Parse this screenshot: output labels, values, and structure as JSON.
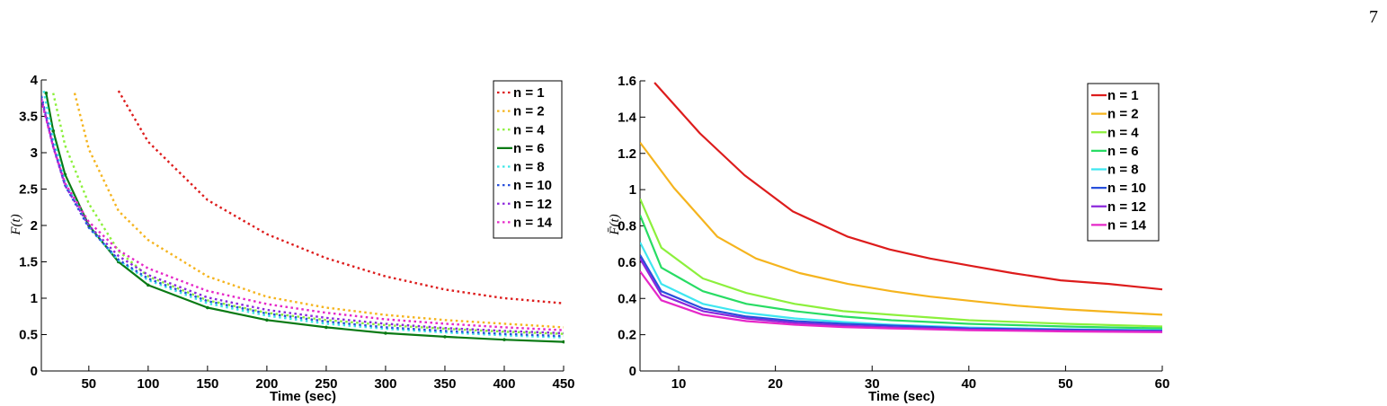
{
  "page_number": "7",
  "chart_data": [
    {
      "type": "line",
      "title": "",
      "xlabel": "Time (sec)",
      "ylabel": "F(t)",
      "xlim": [
        10,
        450
      ],
      "ylim": [
        0,
        4
      ],
      "xticks": [
        "50",
        "100",
        "150",
        "200",
        "250",
        "300",
        "350",
        "400",
        "450"
      ],
      "xtick_values": [
        50,
        100,
        150,
        200,
        250,
        300,
        350,
        400,
        450
      ],
      "yticks": [
        "0",
        "0.5",
        "1",
        "1.5",
        "2",
        "2.5",
        "3",
        "3.5",
        "4"
      ],
      "ytick_values": [
        0,
        0.5,
        1,
        1.5,
        2,
        2.5,
        3,
        3.5,
        4
      ],
      "grid": false,
      "legend_position": "top-right",
      "series": [
        {
          "name": "n = 1",
          "color": "#dd1c1c",
          "style": "dotted",
          "x": [
            75,
            100,
            150,
            200,
            250,
            300,
            350,
            400,
            450
          ],
          "values": [
            3.85,
            3.15,
            2.35,
            1.88,
            1.55,
            1.3,
            1.12,
            1.0,
            0.93
          ]
        },
        {
          "name": "n = 2",
          "color": "#f5b41e",
          "style": "dotted",
          "x": [
            38,
            50,
            75,
            100,
            150,
            200,
            250,
            300,
            350,
            400,
            450
          ],
          "values": [
            3.82,
            3.05,
            2.2,
            1.8,
            1.3,
            1.02,
            0.87,
            0.77,
            0.7,
            0.65,
            0.6
          ]
        },
        {
          "name": "n = 4",
          "color": "#8cf03c",
          "style": "dotted",
          "x": [
            20,
            30,
            50,
            75,
            100,
            150,
            200,
            250,
            300,
            350,
            400,
            450
          ],
          "values": [
            3.82,
            3.1,
            2.3,
            1.65,
            1.3,
            0.97,
            0.8,
            0.7,
            0.63,
            0.58,
            0.54,
            0.51
          ]
        },
        {
          "name": "n = 6",
          "color": "#0a7a14",
          "style": "solid",
          "x": [
            14,
            20,
            30,
            50,
            75,
            100,
            150,
            200,
            250,
            300,
            350,
            400,
            450
          ],
          "values": [
            3.82,
            3.3,
            2.7,
            2.0,
            1.5,
            1.18,
            0.87,
            0.7,
            0.6,
            0.52,
            0.47,
            0.43,
            0.4
          ]
        },
        {
          "name": "n = 8",
          "color": "#3ee6e6",
          "style": "dotted",
          "x": [
            12,
            20,
            30,
            50,
            75,
            100,
            150,
            200,
            250,
            300,
            350,
            400,
            450
          ],
          "values": [
            3.85,
            3.2,
            2.6,
            1.98,
            1.52,
            1.25,
            0.93,
            0.76,
            0.65,
            0.58,
            0.53,
            0.49,
            0.46
          ]
        },
        {
          "name": "n = 10",
          "color": "#2850dc",
          "style": "dotted",
          "x": [
            10,
            20,
            30,
            50,
            75,
            100,
            150,
            200,
            250,
            300,
            350,
            400,
            450
          ],
          "values": [
            3.78,
            3.1,
            2.55,
            1.97,
            1.53,
            1.27,
            0.96,
            0.79,
            0.68,
            0.6,
            0.55,
            0.51,
            0.48
          ]
        },
        {
          "name": "n = 12",
          "color": "#8c28dc",
          "style": "dotted",
          "x": [
            10,
            20,
            30,
            50,
            75,
            100,
            150,
            200,
            250,
            300,
            350,
            400,
            450
          ],
          "values": [
            3.75,
            3.08,
            2.55,
            2.0,
            1.58,
            1.32,
            1.01,
            0.84,
            0.73,
            0.65,
            0.59,
            0.55,
            0.52
          ]
        },
        {
          "name": "n = 14",
          "color": "#e628c8",
          "style": "dotted",
          "x": [
            10,
            20,
            30,
            50,
            75,
            100,
            150,
            200,
            250,
            300,
            350,
            400,
            450
          ],
          "values": [
            3.72,
            3.08,
            2.58,
            2.05,
            1.66,
            1.41,
            1.1,
            0.92,
            0.8,
            0.71,
            0.65,
            0.6,
            0.56
          ]
        }
      ]
    },
    {
      "type": "line",
      "title": "",
      "xlabel": "Time (sec)",
      "ylabel": "F̄(t)",
      "xlim": [
        6,
        60
      ],
      "ylim": [
        0,
        1.6
      ],
      "xticks": [
        "10",
        "20",
        "30",
        "40",
        "50",
        "60"
      ],
      "xtick_values": [
        10,
        20,
        30,
        40,
        50,
        60
      ],
      "yticks": [
        "0",
        "0.2",
        "0.4",
        "0.6",
        "0.8",
        "1",
        "1.2",
        "1.4",
        "1.6"
      ],
      "ytick_values": [
        0,
        0.2,
        0.4,
        0.6,
        0.8,
        1,
        1.2,
        1.4,
        1.6
      ],
      "grid": false,
      "legend_position": "top-right",
      "series": [
        {
          "name": "n = 1",
          "color": "#dd1c1c",
          "style": "solid",
          "x": [
            7.5,
            12.2,
            16.8,
            21.8,
            27.5,
            31.8,
            36,
            40.2,
            44.5,
            49.5,
            54.5,
            60
          ],
          "values": [
            1.59,
            1.31,
            1.08,
            0.88,
            0.74,
            0.67,
            0.62,
            0.58,
            0.54,
            0.5,
            0.48,
            0.45
          ]
        },
        {
          "name": "n = 2",
          "color": "#f5b41e",
          "style": "solid",
          "x": [
            6,
            9.5,
            14,
            18,
            22.5,
            27.5,
            32,
            36,
            40.5,
            45,
            50,
            55,
            60
          ],
          "values": [
            1.26,
            1.01,
            0.74,
            0.62,
            0.54,
            0.48,
            0.44,
            0.41,
            0.385,
            0.36,
            0.34,
            0.325,
            0.31
          ]
        },
        {
          "name": "n = 4",
          "color": "#8cf03c",
          "style": "solid",
          "x": [
            6,
            8.2,
            12.5,
            17,
            22,
            27,
            32,
            40,
            50,
            60
          ],
          "values": [
            0.95,
            0.68,
            0.51,
            0.43,
            0.37,
            0.33,
            0.31,
            0.28,
            0.26,
            0.245
          ]
        },
        {
          "name": "n = 6",
          "color": "#28dc64",
          "style": "solid",
          "x": [
            6,
            8.2,
            12.5,
            17,
            22,
            27,
            32,
            40,
            50,
            60
          ],
          "values": [
            0.86,
            0.57,
            0.44,
            0.37,
            0.33,
            0.3,
            0.28,
            0.26,
            0.245,
            0.235
          ]
        },
        {
          "name": "n = 8",
          "color": "#3ee6f0",
          "style": "solid",
          "x": [
            6,
            8.2,
            12.5,
            17,
            22,
            27,
            32,
            40,
            50,
            60
          ],
          "values": [
            0.71,
            0.48,
            0.37,
            0.32,
            0.29,
            0.27,
            0.255,
            0.24,
            0.23,
            0.225
          ]
        },
        {
          "name": "n = 10",
          "color": "#2850dc",
          "style": "solid",
          "x": [
            6,
            8.2,
            12.5,
            17,
            22,
            27,
            32,
            40,
            50,
            60
          ],
          "values": [
            0.64,
            0.44,
            0.345,
            0.3,
            0.275,
            0.26,
            0.25,
            0.235,
            0.228,
            0.222
          ]
        },
        {
          "name": "n = 12",
          "color": "#8c28dc",
          "style": "solid",
          "x": [
            6,
            8.2,
            12.5,
            17,
            22,
            27,
            32,
            40,
            50,
            60
          ],
          "values": [
            0.62,
            0.42,
            0.33,
            0.29,
            0.265,
            0.25,
            0.24,
            0.228,
            0.222,
            0.218
          ]
        },
        {
          "name": "n = 14",
          "color": "#e628c8",
          "style": "solid",
          "x": [
            6,
            8.2,
            12.5,
            17,
            22,
            27,
            32,
            40,
            50,
            60
          ],
          "values": [
            0.55,
            0.39,
            0.31,
            0.275,
            0.255,
            0.242,
            0.235,
            0.225,
            0.218,
            0.214
          ]
        }
      ]
    }
  ]
}
